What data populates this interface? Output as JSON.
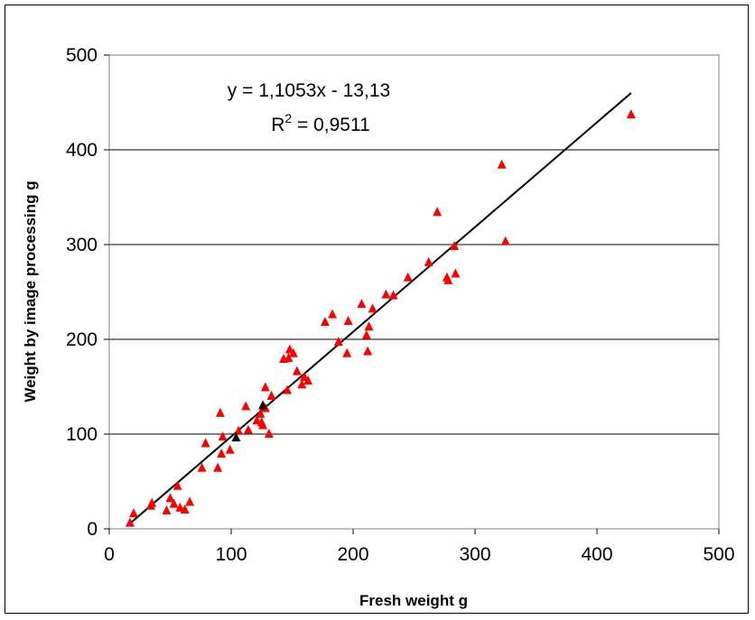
{
  "chart_data": {
    "type": "scatter",
    "xlabel": "Fresh weight g",
    "ylabel": "Weight by image processing g",
    "xlim": [
      0,
      500
    ],
    "ylim": [
      0,
      500
    ],
    "xticks": [
      "0",
      "100",
      "200",
      "300",
      "400",
      "500"
    ],
    "yticks": [
      "0",
      "100",
      "200",
      "300",
      "400",
      "500"
    ],
    "grid": "horizontal",
    "colors": {
      "points": "#ff0000",
      "highlight_points": "#000000",
      "trendline": "#000000",
      "gridline": "#000000"
    },
    "annotation": {
      "equation": "y = 1,1053x - 13,13",
      "r2_prefix": "R",
      "r2_sup": "2",
      "r2_value": " = 0,9511"
    },
    "trendline": {
      "slope": 1.1053,
      "intercept": -13.13,
      "x_range": [
        17,
        428
      ]
    },
    "series": [
      {
        "values": [
          [
            17,
            7
          ],
          [
            20,
            17
          ],
          [
            35,
            28
          ],
          [
            34,
            25
          ],
          [
            47,
            20
          ],
          [
            50,
            33
          ],
          [
            53,
            27
          ],
          [
            56,
            46
          ],
          [
            58,
            23
          ],
          [
            62,
            21
          ],
          [
            66,
            29
          ],
          [
            76,
            65
          ],
          [
            79,
            91
          ],
          [
            89,
            65
          ],
          [
            91,
            123
          ],
          [
            92,
            80
          ],
          [
            93,
            98
          ],
          [
            99,
            84
          ],
          [
            106,
            104
          ],
          [
            112,
            130
          ],
          [
            114,
            105
          ],
          [
            121,
            115
          ],
          [
            124,
            122
          ],
          [
            125,
            113
          ],
          [
            126,
            110
          ],
          [
            128,
            128
          ],
          [
            128,
            150
          ],
          [
            131,
            101
          ],
          [
            133,
            141
          ],
          [
            143,
            180
          ],
          [
            146,
            147
          ],
          [
            147,
            181
          ],
          [
            148,
            190
          ],
          [
            151,
            186
          ],
          [
            154,
            167
          ],
          [
            158,
            153
          ],
          [
            160,
            161
          ],
          [
            163,
            157
          ],
          [
            177,
            219
          ],
          [
            183,
            227
          ],
          [
            188,
            198
          ],
          [
            195,
            186
          ],
          [
            196,
            220
          ],
          [
            207,
            238
          ],
          [
            211,
            205
          ],
          [
            212,
            188
          ],
          [
            213,
            214
          ],
          [
            216,
            233
          ],
          [
            227,
            248
          ],
          [
            233,
            247
          ],
          [
            245,
            266
          ],
          [
            262,
            282
          ],
          [
            269,
            335
          ],
          [
            277,
            266
          ],
          [
            278,
            263
          ],
          [
            283,
            299
          ],
          [
            284,
            270
          ],
          [
            322,
            385
          ],
          [
            325,
            304
          ],
          [
            428,
            438
          ]
        ]
      },
      {
        "values": [
          [
            104,
            97
          ],
          [
            126,
            131
          ]
        ]
      }
    ]
  }
}
